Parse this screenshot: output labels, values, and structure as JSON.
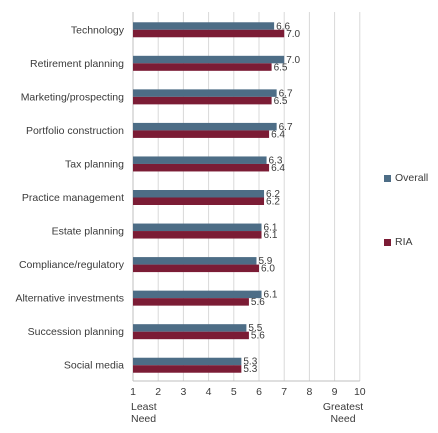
{
  "chart_data": {
    "type": "bar",
    "orientation": "horizontal",
    "categories": [
      "Technology",
      "Retirement planning",
      "Marketing/prospecting",
      "Portfolio construction",
      "Tax planning",
      "Practice management",
      "Estate planning",
      "Compliance/regulatory",
      "Alternative investments",
      "Succession planning",
      "Social media"
    ],
    "series": [
      {
        "name": "Overall",
        "values": [
          6.6,
          7.0,
          6.7,
          6.7,
          6.3,
          6.2,
          6.1,
          5.9,
          6.1,
          5.5,
          5.3
        ],
        "labels": [
          "6.6",
          "7.0",
          "6.7",
          "6.7",
          "6.3",
          "6.2",
          "6.1",
          "5.9",
          "6.1",
          "5.5",
          "5.3"
        ]
      },
      {
        "name": "RIA",
        "values": [
          7.0,
          6.5,
          6.5,
          6.4,
          6.4,
          6.2,
          6.1,
          6.0,
          5.6,
          5.6,
          5.3
        ],
        "labels": [
          "7.0",
          "6.5",
          "6.5",
          "6.4",
          "6.4",
          "6.2",
          "6.1",
          "6.0",
          "5.6",
          "5.6",
          "5.3"
        ]
      }
    ],
    "xlim": [
      1,
      10
    ],
    "xticks": [
      "1",
      "2",
      "3",
      "4",
      "5",
      "6",
      "7",
      "8",
      "9",
      "10"
    ],
    "x_anchor_labels": {
      "low": [
        "Least",
        "Need"
      ],
      "high": [
        "Greatest",
        "Need"
      ]
    },
    "grid": "vertical",
    "legend_position": "right",
    "colors": {
      "Overall": "#4d6d86",
      "RIA": "#7b1c35",
      "grid": "#d9d9d9",
      "axis": "#bfbfbf"
    }
  }
}
